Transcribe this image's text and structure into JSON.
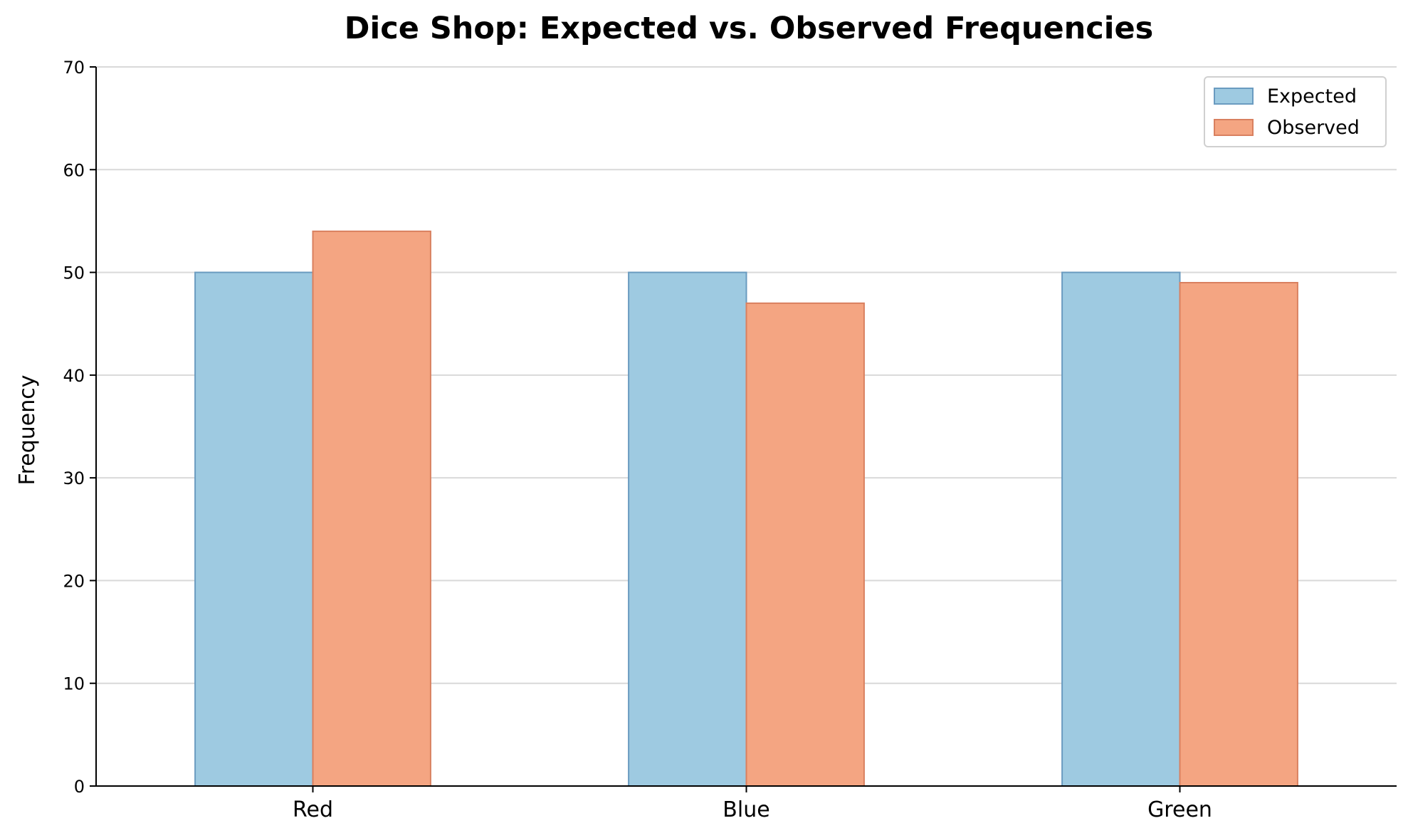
{
  "chart_data": {
    "type": "bar",
    "title": "Dice Shop: Expected vs. Observed Frequencies",
    "xlabel": "",
    "ylabel": "Frequency",
    "categories": [
      "Red",
      "Blue",
      "Green"
    ],
    "series": [
      {
        "name": "Expected",
        "values": [
          50,
          50,
          50
        ],
        "color": "#9ecae1",
        "edge_color": "#6a9bc0"
      },
      {
        "name": "Observed",
        "values": [
          54,
          47,
          49
        ],
        "color": "#f4a582",
        "edge_color": "#d9805f"
      }
    ],
    "ylim": [
      0,
      70
    ],
    "yticks": [
      "0",
      "10",
      "20",
      "30",
      "40",
      "50",
      "60",
      "70"
    ],
    "grid": "horizontal",
    "legend_position": "top-right"
  }
}
